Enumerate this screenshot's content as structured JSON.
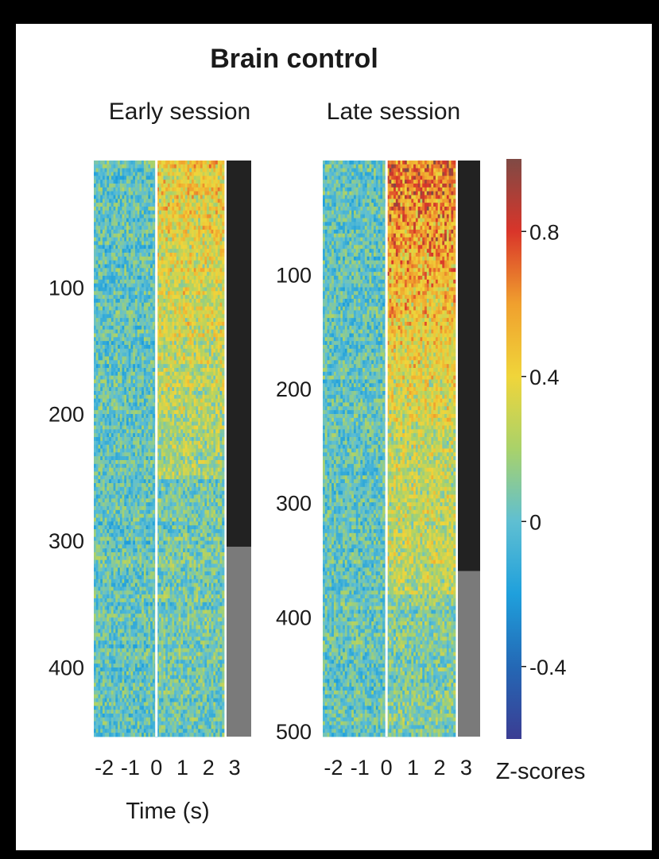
{
  "chart_data": {
    "type": "heatmap",
    "title": "Brain control",
    "title_color": "#7a3b9a",
    "xlabel": "Time (s)",
    "x_ticks": [
      "-2",
      "-1",
      "0",
      "1",
      "2",
      "3"
    ],
    "xlim": [
      -2.4,
      2.6
    ],
    "event_line_x": 0,
    "colorbar": {
      "label": "Z-scores",
      "range": [
        -0.6,
        1.0
      ],
      "ticks": [
        {
          "value": 0.8,
          "label": "0.8"
        },
        {
          "value": 0.4,
          "label": "0.4"
        },
        {
          "value": 0,
          "label": "0"
        },
        {
          "value": -0.4,
          "label": "-0.4"
        }
      ],
      "colors": [
        "#3b3d93",
        "#2468b5",
        "#1fa0dc",
        "#5fbfd2",
        "#a9d26a",
        "#f0d53a",
        "#f0a02e",
        "#d9352a",
        "#7f4a45"
      ]
    },
    "panels": [
      {
        "title": "Early session",
        "n_units": 455,
        "ylim": [
          0,
          455
        ],
        "y_ticks": [
          100,
          200,
          300,
          400
        ],
        "group_bar": {
          "dark_until": 305,
          "dark_color": "#222222",
          "light_color": "#7a7a7a"
        }
      },
      {
        "title": "Late session",
        "n_units": 505,
        "ylim": [
          0,
          505
        ],
        "y_ticks": [
          100,
          200,
          300,
          400,
          500
        ],
        "group_bar": {
          "dark_until": 360,
          "dark_color": "#222222",
          "light_color": "#7a7a7a"
        }
      }
    ]
  }
}
